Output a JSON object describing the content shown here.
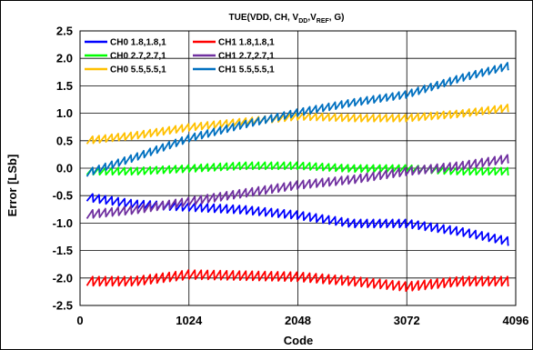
{
  "chart_data": {
    "type": "line",
    "title": {
      "prefix": "TUE(VDD, CH, V",
      "sub1": "DD",
      "mid": ",V",
      "sub2": "REF",
      "suffix": ",  G)"
    },
    "xlabel": "Code",
    "ylabel": "Error [LSb]",
    "xlim": [
      0,
      4096
    ],
    "ylim": [
      -2.5,
      2.5
    ],
    "x_ticks": [
      "0",
      "1024",
      "2048",
      "3072",
      "4096"
    ],
    "y_ticks": [
      "-2.5",
      "-2.0",
      "-1.5",
      "-1.0",
      "-0.5",
      "0.0",
      "0.5",
      "1.0",
      "1.5",
      "2.0",
      "2.5"
    ],
    "grid": true,
    "legend_position": "top-left",
    "series": [
      {
        "name": "CH0 1.8,1.8,1",
        "color": "#0000FF",
        "x": [
          0,
          512,
          1024,
          1536,
          2048,
          2560,
          3072,
          3584,
          4096
        ],
        "y": [
          -0.5,
          -0.65,
          -0.7,
          -0.75,
          -0.85,
          -1.0,
          -1.0,
          -1.15,
          -1.35
        ],
        "ripple": 0.16
      },
      {
        "name": "CH1 1.8,1.8,1",
        "color": "#FF0000",
        "x": [
          0,
          512,
          1024,
          1536,
          2048,
          2560,
          3072,
          3584,
          4096
        ],
        "y": [
          -2.05,
          -2.05,
          -1.93,
          -1.95,
          -1.97,
          -2.05,
          -2.15,
          -2.05,
          -2.05
        ],
        "ripple": 0.18
      },
      {
        "name": "CH0 2.7,2.7,1",
        "color": "#00FF00",
        "x": [
          0,
          512,
          1024,
          1536,
          2048,
          2560,
          3072,
          3584,
          4096
        ],
        "y": [
          -0.05,
          -0.05,
          0.0,
          0.05,
          0.05,
          0.0,
          0.0,
          -0.05,
          -0.05
        ],
        "ripple": 0.14
      },
      {
        "name": "CH1 2.7,2.7,1",
        "color": "#7030A0",
        "x": [
          0,
          512,
          1024,
          1536,
          2048,
          2560,
          3072,
          3584,
          4096
        ],
        "y": [
          -0.85,
          -0.75,
          -0.6,
          -0.45,
          -0.3,
          -0.2,
          -0.05,
          0.05,
          0.2
        ],
        "ripple": 0.16
      },
      {
        "name": "CH0 5.5,5.5,1",
        "color": "#FFC000",
        "x": [
          0,
          512,
          1024,
          1536,
          2048,
          2560,
          3072,
          3584,
          4096
        ],
        "y": [
          0.5,
          0.6,
          0.75,
          0.85,
          0.95,
          0.92,
          0.92,
          1.0,
          1.12
        ],
        "ripple": 0.14
      },
      {
        "name": "CH1 5.5,5.5,1",
        "color": "#0070C0",
        "x": [
          0,
          512,
          1024,
          1536,
          2048,
          2560,
          3072,
          3584,
          4096
        ],
        "y": [
          -0.12,
          0.2,
          0.55,
          0.8,
          1.02,
          1.2,
          1.35,
          1.65,
          1.9
        ],
        "ripple": 0.14
      }
    ]
  }
}
